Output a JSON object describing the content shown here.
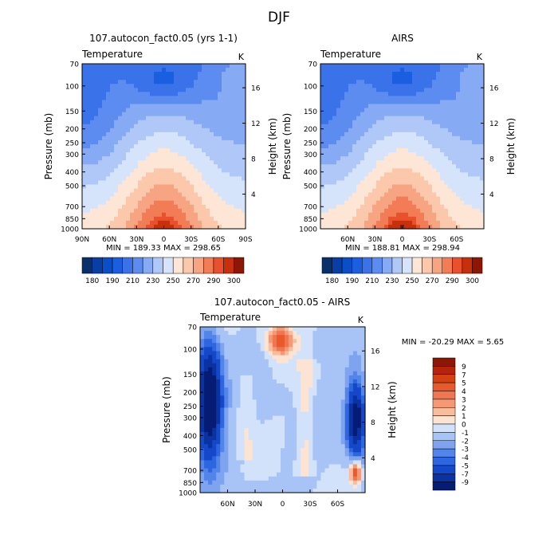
{
  "figure_title": "DJF",
  "chart_data": [
    {
      "type": "heatmap",
      "title": "107.autocon_fact0.05 (yrs 1-1)",
      "variable": "Temperature",
      "units": "K",
      "ylabel_left": "Pressure (mb)",
      "ylabel_right": "Height (km)",
      "xticks": [
        "90N",
        "60N",
        "30N",
        "0",
        "30S",
        "60S",
        "90S"
      ],
      "xtick_lat": [
        90,
        60,
        30,
        0,
        -30,
        -60,
        -90
      ],
      "xlim": [
        90,
        -90
      ],
      "pressure_ticks": [
        "70",
        "100",
        "150",
        "200",
        "250",
        "300",
        "400",
        "500",
        "700",
        "850",
        "1000"
      ],
      "pressure_values": [
        70,
        100,
        150,
        200,
        250,
        300,
        400,
        500,
        700,
        850,
        1000
      ],
      "height_ticks": [
        "16",
        "12",
        "8",
        "4"
      ],
      "height_values": [
        16,
        12,
        8,
        4
      ],
      "stats": "MIN = 189.33   MAX = 298.65",
      "colorbar_labels": [
        "180",
        "190",
        "210",
        "230",
        "250",
        "270",
        "290",
        "300"
      ],
      "colorbar_levels": [
        175,
        180,
        185,
        190,
        200,
        210,
        220,
        230,
        240,
        250,
        260,
        270,
        280,
        290,
        295,
        300
      ],
      "colors": [
        "#08306b",
        "#083ea5",
        "#0a4ec8",
        "#1a5fe0",
        "#3a72ea",
        "#5c8cf0",
        "#86aaf4",
        "#b0c8f8",
        "#d6e4fb",
        "#fde6d6",
        "#fbc8ac",
        "#f7a482",
        "#f27c56",
        "#e8502e",
        "#c8300c",
        "#8e1604"
      ]
    },
    {
      "type": "heatmap",
      "title": "AIRS",
      "variable": "Temperature",
      "units": "K",
      "ylabel_left": "Pressure (mb)",
      "ylabel_right": "Height (km)",
      "xticks": [
        "60N",
        "30N",
        "0",
        "30S",
        "60S"
      ],
      "xtick_lat": [
        60,
        30,
        0,
        -30,
        -60
      ],
      "xlim": [
        90,
        -90
      ],
      "pressure_ticks": [
        "70",
        "100",
        "150",
        "200",
        "250",
        "300",
        "400",
        "500",
        "700",
        "850",
        "1000"
      ],
      "pressure_values": [
        70,
        100,
        150,
        200,
        250,
        300,
        400,
        500,
        700,
        850,
        1000
      ],
      "height_ticks": [
        "16",
        "12",
        "8",
        "4"
      ],
      "height_values": [
        16,
        12,
        8,
        4
      ],
      "stats": "MIN = 188.81   MAX = 298.94",
      "colorbar_labels": [
        "180",
        "190",
        "210",
        "230",
        "250",
        "270",
        "290",
        "300"
      ],
      "colorbar_levels": [
        175,
        180,
        185,
        190,
        200,
        210,
        220,
        230,
        240,
        250,
        260,
        270,
        280,
        290,
        295,
        300
      ],
      "colors": [
        "#08306b",
        "#083ea5",
        "#0a4ec8",
        "#1a5fe0",
        "#3a72ea",
        "#5c8cf0",
        "#86aaf4",
        "#b0c8f8",
        "#d6e4fb",
        "#fde6d6",
        "#fbc8ac",
        "#f7a482",
        "#f27c56",
        "#e8502e",
        "#c8300c",
        "#8e1604"
      ]
    },
    {
      "type": "heatmap",
      "title": "107.autocon_fact0.05 - AIRS",
      "variable": "Temperature",
      "units": "K",
      "ylabel_left": "Pressure (mb)",
      "ylabel_right": "Height (km)",
      "xticks": [
        "60N",
        "30N",
        "0",
        "30S",
        "60S"
      ],
      "xtick_lat": [
        60,
        30,
        0,
        -30,
        -60
      ],
      "xlim": [
        90,
        -90
      ],
      "pressure_ticks": [
        "70",
        "100",
        "150",
        "200",
        "250",
        "300",
        "400",
        "500",
        "700",
        "850",
        "1000"
      ],
      "pressure_values": [
        70,
        100,
        150,
        200,
        250,
        300,
        400,
        500,
        700,
        850,
        1000
      ],
      "height_ticks": [
        "16",
        "12",
        "8",
        "4"
      ],
      "height_values": [
        16,
        12,
        8,
        4
      ],
      "stats": "MIN = -20.29   MAX =    5.65",
      "colorbar_labels": [
        "9",
        "7",
        "5",
        "4",
        "3",
        "2",
        "1",
        "0",
        "-1",
        "-2",
        "-3",
        "-4",
        "-5",
        "-7",
        "-9"
      ],
      "colorbar_levels": [
        9,
        7,
        5,
        4,
        3,
        2,
        1,
        0,
        -1,
        -2,
        -3,
        -4,
        -5,
        -7,
        -9
      ],
      "colors": [
        "#8e1604",
        "#b42408",
        "#d4400f",
        "#e85a2c",
        "#f07650",
        "#f59874",
        "#f9bd9e",
        "#fde4d2",
        "#d2e2fb",
        "#a8c4f6",
        "#7ea4f0",
        "#5384ea",
        "#2e66e0",
        "#1448c8",
        "#0a32a0",
        "#061c74"
      ]
    }
  ]
}
